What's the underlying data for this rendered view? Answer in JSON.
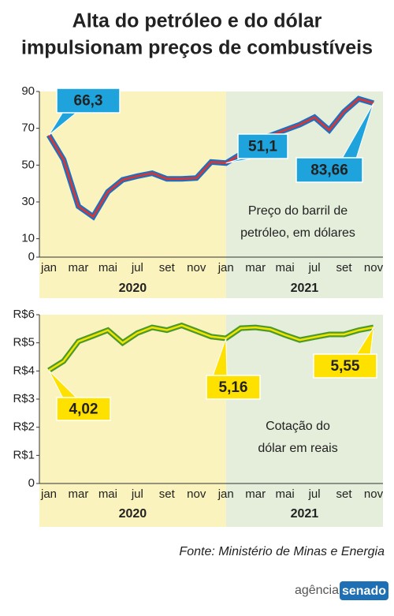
{
  "title": [
    "Alta do petróleo e do dólar",
    "impulsionam preços de combustíveis"
  ],
  "chart_data": [
    {
      "type": "line",
      "categories": [
        "jan",
        null,
        "mar",
        null,
        "mai",
        null,
        "jul",
        null,
        "set",
        null,
        "nov",
        null,
        "jan",
        null,
        "mar",
        null,
        "mai",
        null,
        "jul",
        null,
        "set",
        null,
        "nov"
      ],
      "periods": [
        {
          "label": "2020",
          "color": "#fbf3bd"
        },
        {
          "label": "2021",
          "color": "#e4eedb"
        }
      ],
      "series": [
        {
          "color": "#1f6fc0",
          "core_color": "#e2332b",
          "values": [
            66.3,
            53,
            27.6,
            22,
            35.5,
            42,
            44,
            45.6,
            42.5,
            42.5,
            43,
            51.7,
            51.1,
            56,
            64,
            66,
            69,
            72,
            76,
            69,
            79,
            86,
            83.66
          ],
          "value_labels": [
            "66,3",
            null,
            null,
            null,
            null,
            null,
            null,
            null,
            null,
            null,
            null,
            null,
            "51,1",
            null,
            null,
            null,
            null,
            null,
            null,
            null,
            null,
            null,
            "83,66"
          ],
          "label_color": "#1ea3dc"
        }
      ],
      "ylim": [
        0,
        90
      ],
      "yticks": [
        0,
        10,
        30,
        50,
        70,
        90
      ],
      "annotation": [
        "Preço do barril de",
        "petróleo, em dólares"
      ]
    },
    {
      "type": "line",
      "categories": [
        "jan",
        null,
        "mar",
        null,
        "mai",
        null,
        "jul",
        null,
        "set",
        null,
        "nov",
        null,
        "jan",
        null,
        "mar",
        null,
        "mai",
        null,
        "jul",
        null,
        "set",
        null,
        "nov"
      ],
      "periods": [
        {
          "label": "2020",
          "color": "#fbf3bd"
        },
        {
          "label": "2021",
          "color": "#e4eedb"
        }
      ],
      "series": [
        {
          "color": "#4d9a2a",
          "core_color": "#f3e400",
          "values": [
            4.02,
            4.35,
            5.05,
            5.25,
            5.45,
            5.0,
            5.35,
            5.55,
            5.45,
            5.62,
            5.42,
            5.22,
            5.16,
            5.52,
            5.55,
            5.48,
            5.28,
            5.1,
            5.2,
            5.3,
            5.3,
            5.45,
            5.55
          ],
          "value_labels": [
            "4,02",
            null,
            null,
            null,
            null,
            null,
            null,
            null,
            null,
            null,
            null,
            null,
            "5,16",
            null,
            null,
            null,
            null,
            null,
            null,
            null,
            null,
            null,
            "5,55"
          ],
          "label_color": "#ffe100"
        }
      ],
      "ylim": [
        0,
        6
      ],
      "yticks": [
        0,
        {
          "value": 1,
          "label": "R$1"
        },
        {
          "value": 2,
          "label": "R$2"
        },
        {
          "value": 3,
          "label": "R$3"
        },
        {
          "value": 4,
          "label": "R$4"
        },
        {
          "value": 5,
          "label": "R$5"
        },
        {
          "value": 6,
          "label": "R$6"
        }
      ],
      "annotation": [
        "Cotação do",
        "dólar em reais"
      ]
    }
  ],
  "source": "Fonte: Ministério de Minas e Energia",
  "logo": [
    "agência",
    "senado"
  ]
}
